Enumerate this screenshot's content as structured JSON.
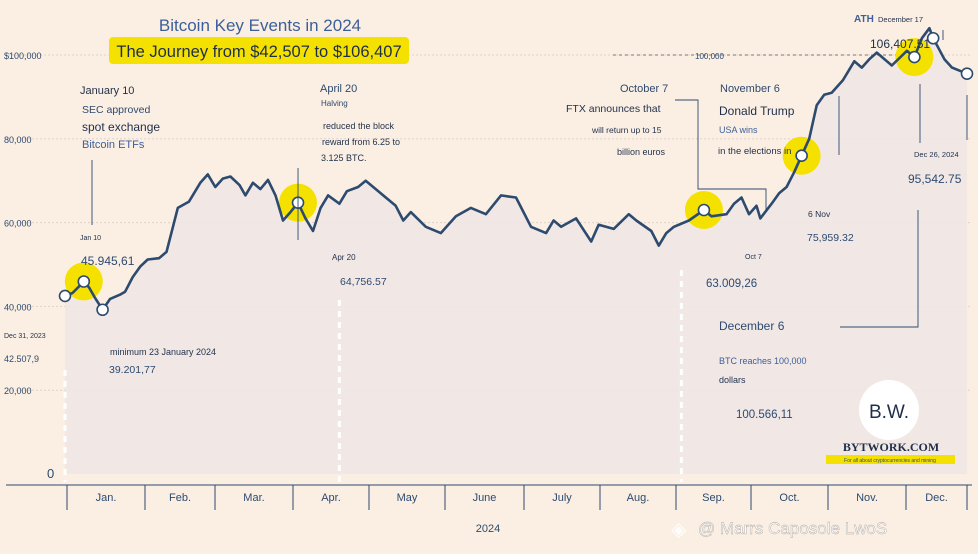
{
  "chart_data": {
    "type": "line",
    "title": "Bitcoin Key Events in 2024",
    "subtitle": "The Journey from $42,507 to $106,407",
    "xlabel": "2024",
    "ylabel": "",
    "ylim": [
      0,
      110000
    ],
    "grid": true,
    "y_ticks": [
      {
        "v": 100000,
        "label": "$100,000"
      },
      {
        "v": 80000,
        "label": "80,000"
      },
      {
        "v": 60000,
        "label": "60,000"
      },
      {
        "v": 40000,
        "label": "40,000"
      },
      {
        "v": 20000,
        "label": "20,000"
      },
      {
        "v": 0,
        "label": "0"
      }
    ],
    "months": [
      "Jan.",
      "Feb.",
      "Mar.",
      "Apr.",
      "May",
      "June",
      "July",
      "Aug.",
      "Sep.",
      "Oct.",
      "Nov.",
      "Dec."
    ],
    "series": [
      {
        "x": [
          0,
          0.1,
          0.2,
          0.25,
          0.32,
          0.4,
          0.5,
          0.6,
          0.73,
          0.8,
          0.9,
          1.0,
          1.1,
          1.25,
          1.35,
          1.5,
          1.65,
          1.8,
          1.9,
          2.0,
          2.1,
          2.2,
          2.32,
          2.4,
          2.5,
          2.6,
          2.7,
          2.8,
          2.9,
          3.0,
          3.1,
          3.2,
          3.3,
          3.4,
          3.5,
          3.65,
          3.75,
          3.9,
          4.0,
          4.2,
          4.4,
          4.5,
          4.6,
          4.8,
          5.0,
          5.2,
          5.4,
          5.6,
          5.8,
          6.0,
          6.1,
          6.2,
          6.4,
          6.5,
          6.6,
          6.8,
          7.0,
          7.1,
          7.3,
          7.5,
          7.6,
          7.8,
          7.9,
          8.0,
          8.1,
          8.3,
          8.5,
          8.6,
          8.8,
          8.9,
          9.0,
          9.1,
          9.2,
          9.25,
          9.4,
          9.5,
          9.6,
          9.7,
          9.8,
          9.9,
          10.0,
          10.1,
          10.2,
          10.35,
          10.5,
          10.6,
          10.7,
          10.8,
          11.0,
          11.2,
          11.3,
          11.4,
          11.5,
          11.55,
          11.7,
          11.8,
          12.0
        ],
        "values": [
          42507,
          43200,
          45000,
          45945,
          44500,
          42000,
          39202,
          41800,
          42800,
          43500,
          47000,
          49500,
          51200,
          51500,
          53000,
          63500,
          65000,
          69500,
          71500,
          68500,
          70500,
          71000,
          69000,
          66500,
          69500,
          68000,
          70200,
          66500,
          60500,
          62500,
          64757,
          61000,
          58000,
          63500,
          66500,
          64500,
          67500,
          68500,
          70000,
          67000,
          64000,
          60500,
          62500,
          59000,
          57500,
          61500,
          63500,
          62000,
          66500,
          66000,
          62500,
          59000,
          57500,
          60500,
          59000,
          61000,
          55500,
          59500,
          58500,
          62000,
          60500,
          58000,
          54500,
          57500,
          59000,
          60500,
          63009,
          61500,
          62000,
          64500,
          66000,
          62000,
          64000,
          61000,
          64500,
          67000,
          68500,
          72000,
          75959,
          80000,
          88000,
          90500,
          91000,
          94000,
          98500,
          97000,
          99000,
          100566,
          97500,
          101000,
          99500,
          104000,
          106407,
          104000,
          99000,
          97000,
          95543
        ]
      }
    ],
    "annotations": [
      {
        "date": "January 10",
        "lines": [
          "SEC approved",
          "spot exchange",
          "Bitcoin ETFs"
        ],
        "short": "Jan 10",
        "value": "45.945,61"
      },
      {
        "date": "April 20",
        "sub": "Halving",
        "lines": [
          "reduced the block",
          "reward from 6.25 to",
          "3.125 BTC."
        ],
        "short": "Apr 20",
        "value": "64,756.57"
      },
      {
        "date": "October 7",
        "lines": [
          "FTX announces that",
          "will return up to 15",
          "billion euros"
        ],
        "short": "Oct 7",
        "value": "63.009,26"
      },
      {
        "date": "November 6",
        "lines": [
          "Donald Trump",
          "USA wins",
          "in the elections in"
        ],
        "short": "6 Nov",
        "value": "75,959.32"
      },
      {
        "date": "December 6",
        "lines": [
          "BTC reaches 100,000",
          "dollars"
        ],
        "value": "100.566,11"
      },
      {
        "date": "ATH",
        "sub": "December 17",
        "value": "106,407.51",
        "ref": "100,000"
      },
      {
        "date": "Dec 26, 2024",
        "value": "95,542.75"
      },
      {
        "date": "Dec 31, 2023",
        "value": "42.507,9"
      },
      {
        "date": "minimum 23 January 2024",
        "value": "39.201,77"
      }
    ],
    "colors": {
      "line": "#2d4a6f",
      "highlight": "#f5e100",
      "background": "#fbefe3",
      "fill": "#eee6e6",
      "accent": "#3c5f9a"
    }
  },
  "brand": {
    "monogram": "B.W.",
    "name": "BYTWORK.COM",
    "tagline": "For all about cryptocurrencies and mining"
  },
  "watermark": "@ Marrs Caposole LwoS"
}
